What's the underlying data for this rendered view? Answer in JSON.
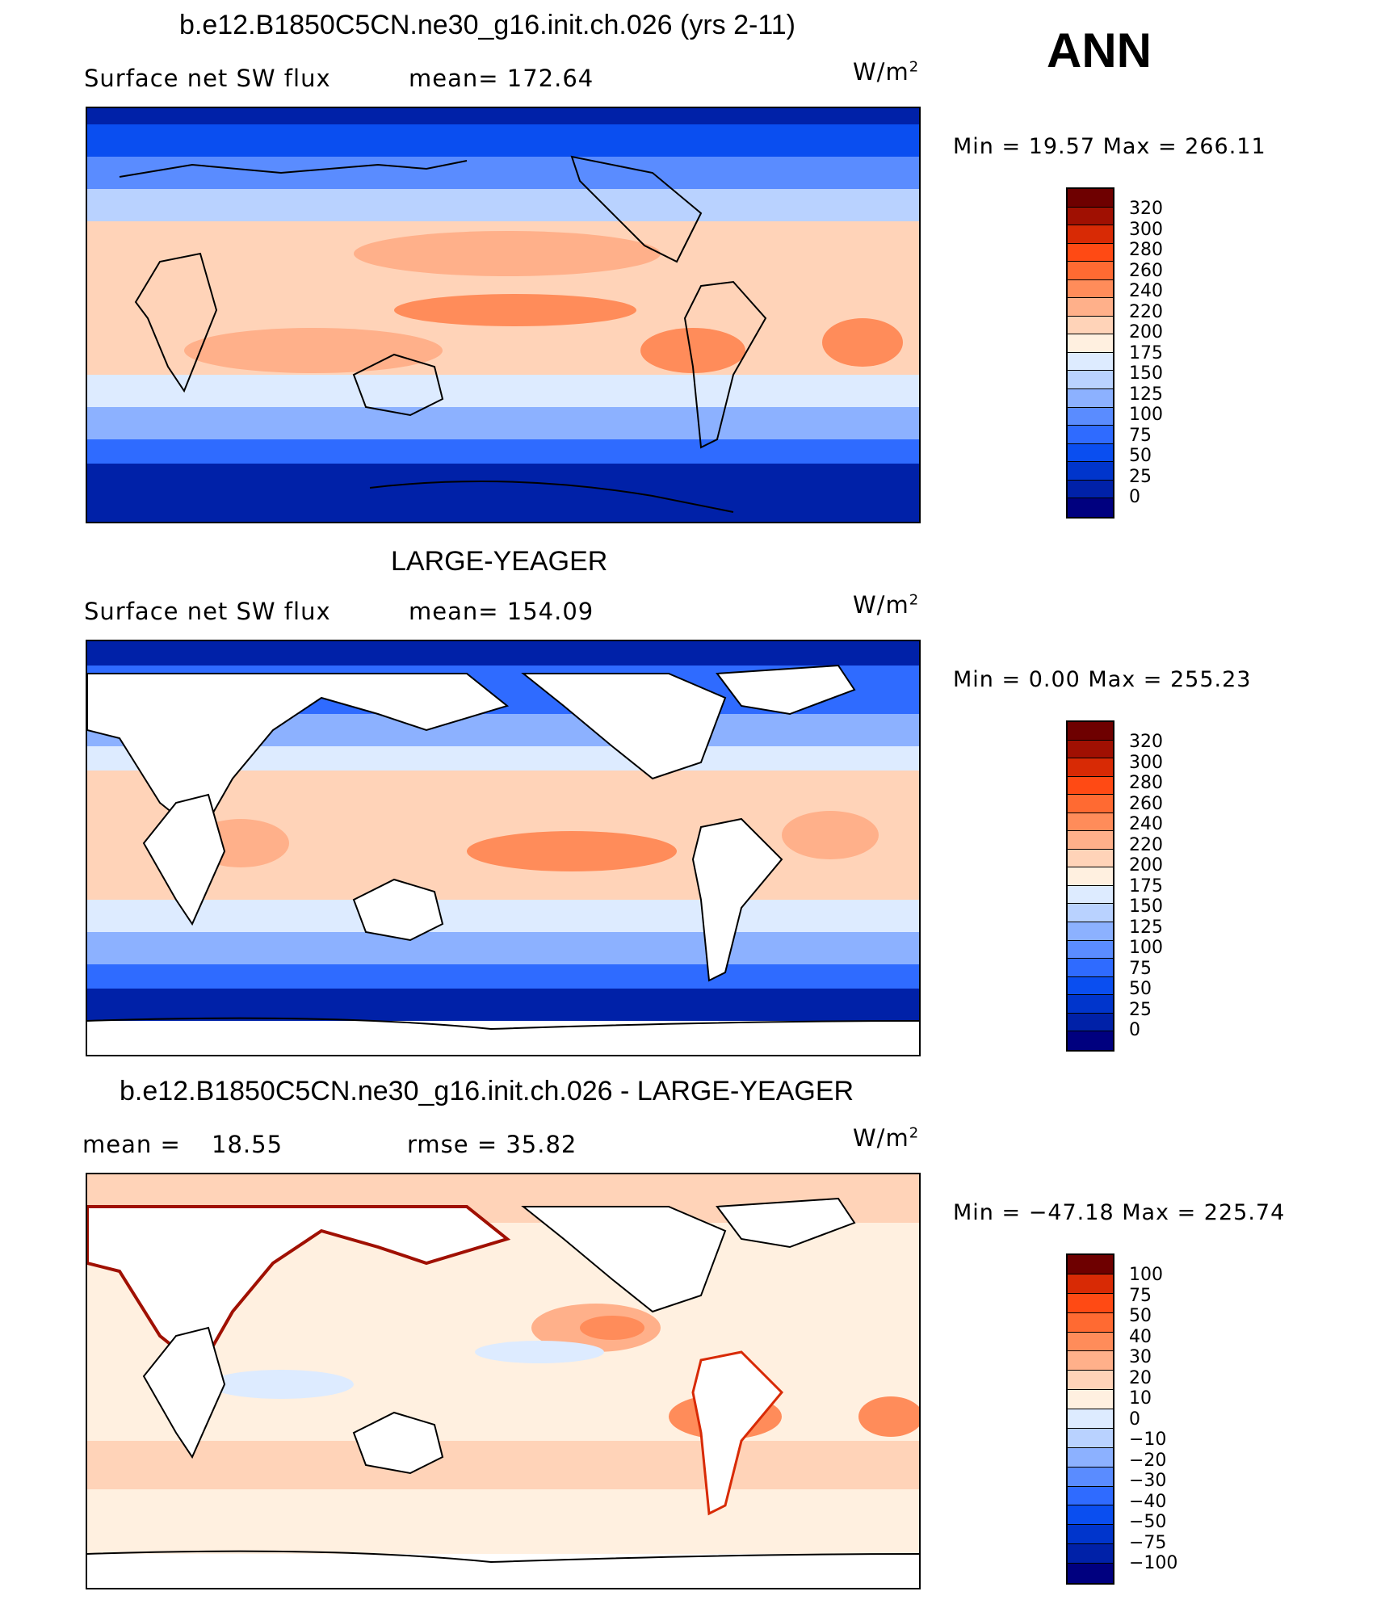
{
  "header": {
    "season": "ANN",
    "units": "W/m",
    "units_exp": "2"
  },
  "colors": {
    "abs_scale": [
      "#00007f",
      "#0021a8",
      "#0035cc",
      "#0a4ef0",
      "#2f6bff",
      "#5a8cff",
      "#8cb1ff",
      "#b9d2ff",
      "#ddebff",
      "#fff0e0",
      "#ffd3b8",
      "#ffb08a",
      "#ff8c5a",
      "#ff6a32",
      "#ff4a14",
      "#d82a05",
      "#a01002",
      "#6e0000"
    ],
    "diff_scale": [
      "#00007f",
      "#0021a8",
      "#0035cc",
      "#0a4ef0",
      "#2f6bff",
      "#5a8cff",
      "#8cb1ff",
      "#b9d2ff",
      "#ddebff",
      "#fff0e0",
      "#ffd3b8",
      "#ffb08a",
      "#ff8c5a",
      "#ff6a32",
      "#ff4a14",
      "#d82a05",
      "#6e0000"
    ],
    "coast": "#000000",
    "land": "#ffffff"
  },
  "panels": [
    {
      "title": "b.e12.B1850C5CN.ne30_g16.init.ch.026 (yrs 2-11)",
      "variable": "Surface net SW flux",
      "stat1": "mean=  172.64",
      "stat2": "",
      "minmax": "Min =   19.57 Max = 266.11",
      "levels": [
        "320",
        "300",
        "280",
        "260",
        "240",
        "220",
        "200",
        "175",
        "150",
        "125",
        "100",
        "75",
        "50",
        "25",
        "0"
      ]
    },
    {
      "title": "LARGE-YEAGER",
      "variable": "Surface net SW flux",
      "stat1": "mean=  154.09",
      "stat2": "",
      "minmax": "Min =    0.00 Max = 255.23",
      "levels": [
        "320",
        "300",
        "280",
        "260",
        "240",
        "220",
        "200",
        "175",
        "150",
        "125",
        "100",
        "75",
        "50",
        "25",
        "0"
      ]
    },
    {
      "title": "b.e12.B1850C5CN.ne30_g16.init.ch.026 - LARGE-YEAGER",
      "variable": "mean =",
      "stat1": "18.55",
      "stat2": "rmse =   35.82",
      "minmax": "Min = −47.18 Max = 225.74",
      "levels": [
        "100",
        "75",
        "50",
        "40",
        "30",
        "20",
        "10",
        "0",
        "−10",
        "−20",
        "−30",
        "−40",
        "−50",
        "−75",
        "−100"
      ]
    }
  ]
}
